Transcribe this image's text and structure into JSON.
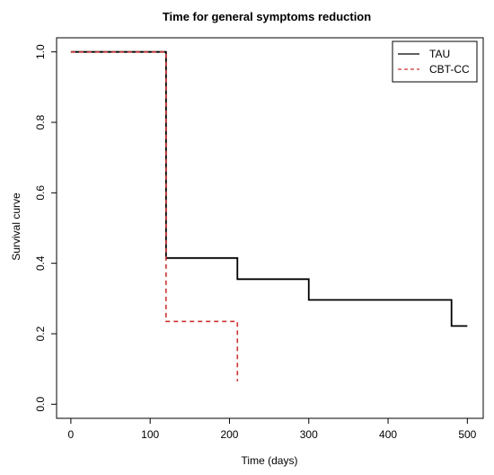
{
  "chart_data": {
    "type": "line",
    "title": "Time for general symptoms reduction",
    "xlabel": "Time (days)",
    "ylabel": "Survival curve",
    "xlim": [
      -18,
      520
    ],
    "ylim": [
      -0.04,
      1.04
    ],
    "x_ticks": [
      0,
      100,
      200,
      300,
      400,
      500
    ],
    "y_ticks": [
      0.0,
      0.2,
      0.4,
      0.6,
      0.8,
      1.0
    ],
    "x_tick_labels": [
      "0",
      "100",
      "200",
      "300",
      "400",
      "500"
    ],
    "y_tick_labels": [
      "0.0",
      "0.2",
      "0.4",
      "0.6",
      "0.8",
      "1.0"
    ],
    "grid": false,
    "legend_position": "top-right",
    "series": [
      {
        "name": "TAU",
        "color": "#000000",
        "dash": "solid",
        "step": true,
        "x": [
          0,
          120,
          210,
          300,
          480,
          500
        ],
        "y": [
          1.0,
          0.415,
          0.355,
          0.296,
          0.222,
          0.222
        ]
      },
      {
        "name": "CBT-CC",
        "color": "#cc3333",
        "dash": "dashed",
        "step": true,
        "x": [
          0,
          120,
          210,
          210
        ],
        "y": [
          1.0,
          0.235,
          0.235,
          0.065
        ]
      }
    ]
  }
}
